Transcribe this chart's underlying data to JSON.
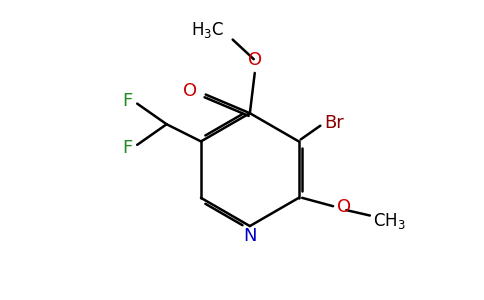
{
  "bg_color": "#ffffff",
  "bond_color": "#000000",
  "N_color": "#0000cd",
  "O_color": "#cc0000",
  "F_color": "#228B22",
  "Br_color": "#8b0000",
  "bond_width": 1.8,
  "dbo": 0.06,
  "figsize": [
    4.84,
    3.0
  ],
  "dpi": 100,
  "xlim": [
    0,
    9.68
  ],
  "ylim": [
    0,
    6.0
  ]
}
